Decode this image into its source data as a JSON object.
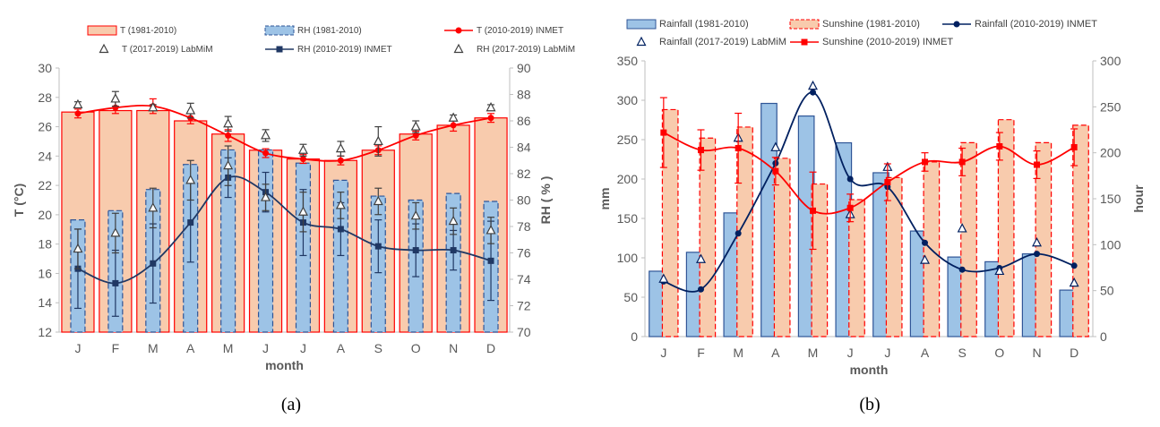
{
  "captions": [
    "(a)",
    "(b)"
  ],
  "chart_data": [
    {
      "type": "bar",
      "categories": [
        "J",
        "F",
        "M",
        "A",
        "M",
        "J",
        "J",
        "A",
        "S",
        "O",
        "N",
        "D"
      ],
      "xlabel": "month",
      "ylabel": "T (°C)",
      "ylabel_right": "RH ( % )",
      "ylim": [
        12,
        30
      ],
      "ylim_right": [
        70,
        90
      ],
      "yticks": [
        "12",
        "14",
        "16",
        "18",
        "20",
        "22",
        "24",
        "26",
        "28",
        "30"
      ],
      "yticks_right": [
        "70",
        "72",
        "74",
        "76",
        "78",
        "80",
        "82",
        "84",
        "86",
        "88",
        "90"
      ],
      "grid": "none",
      "legend_position": "top",
      "series": [
        {
          "name": "T (1981-2010)",
          "kind": "bar",
          "axis": "left",
          "fill": "#f8cbad",
          "stroke": "#ff0000",
          "values": [
            27.0,
            27.1,
            27.1,
            26.4,
            25.5,
            24.4,
            23.8,
            23.7,
            24.4,
            25.5,
            26.1,
            26.6
          ]
        },
        {
          "name": "RH (1981-2010)",
          "kind": "bar",
          "axis": "right",
          "fill": "#9dc3e6",
          "stroke": "#2f5597",
          "values": [
            78.5,
            79.2,
            80.8,
            82.7,
            83.8,
            83.8,
            82.8,
            81.5,
            80.3,
            80.0,
            80.5,
            79.9
          ]
        },
        {
          "name": "T (2010-2019) INMET",
          "kind": "line",
          "axis": "left",
          "color": "#ff0000",
          "values": [
            26.9,
            27.3,
            27.4,
            26.6,
            25.4,
            24.2,
            23.8,
            23.7,
            24.4,
            25.4,
            26.1,
            26.6
          ],
          "errors": [
            0.3,
            0.4,
            0.5,
            0.4,
            0.4,
            0.3,
            0.3,
            0.3,
            0.3,
            0.3,
            0.4,
            0.3
          ]
        },
        {
          "name": "T (2017-2019) LabMiM",
          "kind": "marker",
          "axis": "left",
          "color": "#404040",
          "values": [
            27.5,
            27.9,
            27.3,
            27.1,
            26.2,
            25.4,
            24.4,
            24.5,
            25.0,
            26.0,
            26.6,
            27.3
          ],
          "errors": [
            0.2,
            0.5,
            0.2,
            0.5,
            0.5,
            0.4,
            0.4,
            0.5,
            1.0,
            0.4,
            0.2,
            0.2
          ]
        },
        {
          "name": "RH (2010-2019) INMET",
          "kind": "line",
          "axis": "right",
          "color": "#203864",
          "values": [
            74.8,
            73.7,
            75.2,
            78.3,
            81.7,
            80.6,
            78.3,
            77.8,
            76.5,
            76.2,
            76.2,
            75.4
          ],
          "errors": [
            3.0,
            2.5,
            3.0,
            3.0,
            1.5,
            1.5,
            2.5,
            2.0,
            2.0,
            2.0,
            1.5,
            3.0
          ]
        },
        {
          "name": "RH (2017-2019) LabMiM",
          "kind": "marker",
          "axis": "right",
          "color": "#404040",
          "values": [
            76.3,
            77.5,
            79.4,
            81.5,
            82.6,
            80.2,
            79.1,
            79.6,
            79.9,
            78.8,
            78.4,
            77.7
          ],
          "errors": [
            1.5,
            1.5,
            1.5,
            1.5,
            1.5,
            1.0,
            1.5,
            1.0,
            1.0,
            1.0,
            1.0,
            1.0
          ]
        }
      ]
    },
    {
      "type": "bar",
      "categories": [
        "J",
        "F",
        "M",
        "A",
        "M",
        "J",
        "J",
        "A",
        "S",
        "O",
        "N",
        "D"
      ],
      "xlabel": "month",
      "ylabel": "mm",
      "ylabel_right": "hour",
      "ylim": [
        0,
        350
      ],
      "ylim_right": [
        0,
        300
      ],
      "yticks": [
        "0",
        "50",
        "100",
        "150",
        "200",
        "250",
        "300",
        "350"
      ],
      "yticks_right": [
        "0",
        "50",
        "100",
        "150",
        "200",
        "250",
        "300"
      ],
      "grid": "none",
      "legend_position": "top",
      "series": [
        {
          "name": "Rainfall  (1981-2010)",
          "kind": "bar",
          "axis": "left",
          "fill": "#9dc3e6",
          "stroke": "#2f5597",
          "values": [
            83,
            107,
            157,
            296,
            280,
            246,
            208,
            134,
            101,
            95,
            105,
            59
          ]
        },
        {
          "name": "Sunshine (1981-2010)",
          "kind": "bar",
          "axis": "right",
          "fill": "#f8cbad",
          "stroke": "#ff0000",
          "values": [
            247,
            216,
            228,
            194,
            166,
            149,
            173,
            190,
            211,
            236,
            211,
            230
          ]
        },
        {
          "name": "Rainfall (2010-2019) INMET",
          "kind": "line",
          "axis": "left",
          "color": "#002060",
          "values": [
            70,
            60,
            131,
            220,
            310,
            200,
            190,
            119,
            85,
            87,
            105,
            90
          ]
        },
        {
          "name": "Rainfall (2017-2019) LabMiM",
          "kind": "marker",
          "axis": "left",
          "color": "#002060",
          "values": [
            73,
            98,
            252,
            240,
            318,
            155,
            215,
            97,
            137,
            83,
            119,
            68
          ]
        },
        {
          "name": "Sunshine (2010-2019) INMET",
          "kind": "line",
          "axis": "right",
          "color": "#ff0000",
          "values": [
            222,
            203,
            205,
            180,
            137,
            140,
            168,
            190,
            190,
            207,
            187,
            206
          ],
          "errors": [
            38,
            22,
            38,
            15,
            42,
            15,
            20,
            10,
            15,
            15,
            15,
            20
          ]
        }
      ]
    }
  ]
}
